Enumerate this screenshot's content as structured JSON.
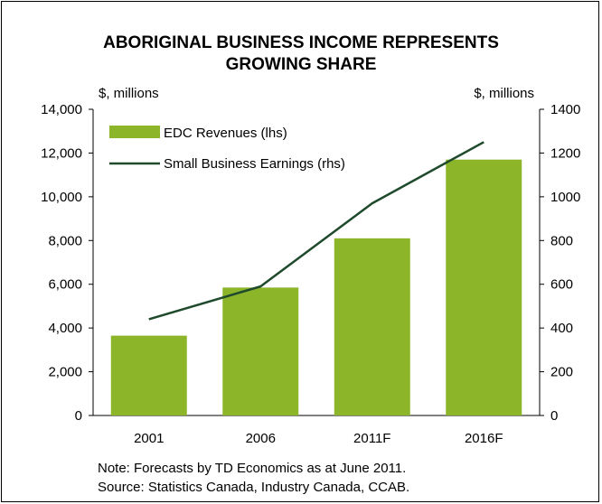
{
  "chart_data": {
    "type": "bar",
    "title_lines": [
      "ABORIGINAL BUSINESS INCOME REPRESENTS",
      "GROWING SHARE"
    ],
    "left_unit": "$, millions",
    "right_unit": "$, millions",
    "categories": [
      "2001",
      "2006",
      "2011F",
      "2016F"
    ],
    "series": [
      {
        "name": "EDC Revenues (lhs)",
        "type": "bar",
        "axis": "left",
        "color": "#8db52a",
        "values": [
          3650,
          5850,
          8100,
          11700
        ]
      },
      {
        "name": "Small Business Earnings (rhs)",
        "type": "line",
        "axis": "right",
        "color": "#1f4a2c",
        "values": [
          440,
          590,
          970,
          1250
        ]
      }
    ],
    "left_axis": {
      "min": 0,
      "max": 14000,
      "ticks": [
        "0",
        "2,000",
        "4,000",
        "6,000",
        "8,000",
        "10,000",
        "12,000",
        "14,000"
      ]
    },
    "right_axis": {
      "min": 0,
      "max": 1400,
      "ticks": [
        "0",
        "200",
        "400",
        "600",
        "800",
        "1000",
        "1200",
        "1400"
      ]
    },
    "legend_position": "top-left",
    "grid": false
  },
  "notes": {
    "line1": "Note: Forecasts by TD Economics as at June 2011.",
    "line2": "Source: Statistics Canada, Industry Canada, CCAB."
  }
}
